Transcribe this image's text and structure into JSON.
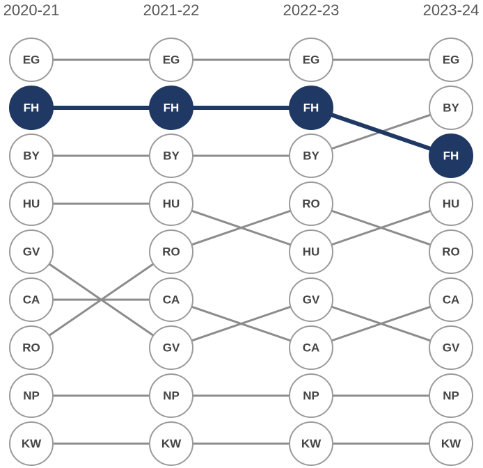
{
  "chart_data": {
    "type": "bump",
    "categories": [
      "2020-21",
      "2021-22",
      "2022-23",
      "2023-24"
    ],
    "columns": [
      [
        "EG",
        "FH",
        "BY",
        "HU",
        "GV",
        "CA",
        "RO",
        "NP",
        "KW"
      ],
      [
        "EG",
        "FH",
        "BY",
        "HU",
        "RO",
        "CA",
        "GV",
        "NP",
        "KW"
      ],
      [
        "EG",
        "FH",
        "BY",
        "RO",
        "HU",
        "GV",
        "CA",
        "NP",
        "KW"
      ],
      [
        "EG",
        "BY",
        "FH",
        "HU",
        "RO",
        "CA",
        "GV",
        "NP",
        "KW"
      ]
    ],
    "highlight": "FH",
    "highlight_color": "#1f3864",
    "color": "#8c8c8c"
  }
}
